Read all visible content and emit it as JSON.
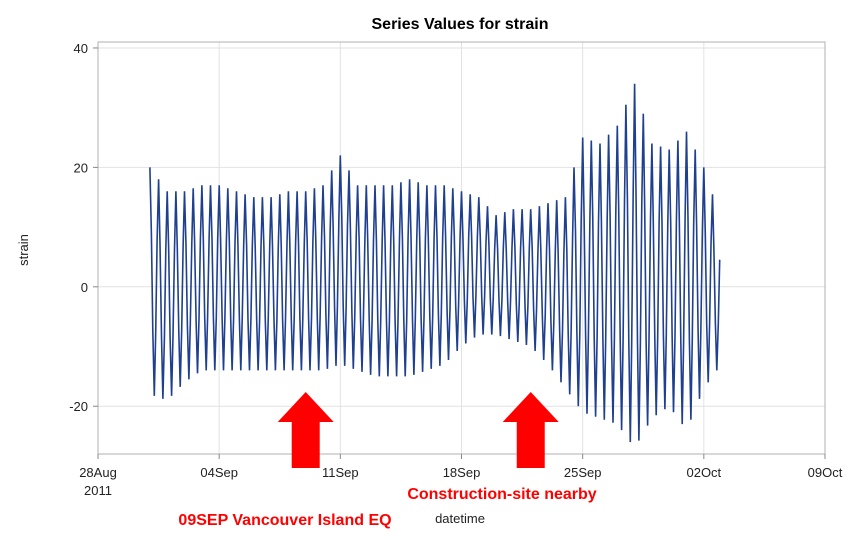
{
  "chart_data": {
    "type": "line",
    "title": "Series Values for strain",
    "xlabel": "datetime",
    "ylabel": "strain",
    "xlim": [
      "2011-08-28",
      "2011-10-09"
    ],
    "ylim": [
      -28,
      41
    ],
    "x_ticks": [
      {
        "date": "2011-08-28",
        "label": "28Aug",
        "sublabel": "2011"
      },
      {
        "date": "2011-09-04",
        "label": "04Sep",
        "sublabel": ""
      },
      {
        "date": "2011-09-11",
        "label": "11Sep",
        "sublabel": ""
      },
      {
        "date": "2011-09-18",
        "label": "18Sep",
        "sublabel": ""
      },
      {
        "date": "2011-09-25",
        "label": "25Sep",
        "sublabel": ""
      },
      {
        "date": "2011-10-02",
        "label": "02Oct",
        "sublabel": ""
      },
      {
        "date": "2011-10-09",
        "label": "09Oct",
        "sublabel": ""
      }
    ],
    "y_ticks": [
      40,
      20,
      0,
      -20
    ],
    "grid": true,
    "line_color": "#1f3f8f",
    "series": [
      {
        "start": "2011-08-31",
        "x": [
          "2011-08-31",
          "2011-09-01",
          "2011-09-02",
          "2011-09-03",
          "2011-09-04",
          "2011-09-05",
          "2011-09-06",
          "2011-09-07",
          "2011-09-08",
          "2011-09-09",
          "2011-09-10",
          "2011-09-11",
          "2011-09-12",
          "2011-09-13",
          "2011-09-14",
          "2011-09-15",
          "2011-09-16",
          "2011-09-17",
          "2011-09-18",
          "2011-09-19",
          "2011-09-20",
          "2011-09-21",
          "2011-09-22",
          "2011-09-23",
          "2011-09-24",
          "2011-09-25",
          "2011-09-26",
          "2011-09-27",
          "2011-09-28",
          "2011-09-29",
          "2011-09-30",
          "2011-10-01",
          "2011-10-02",
          "2011-10-03"
        ],
        "upper": [
          20,
          16,
          16,
          17,
          17,
          16,
          15,
          15,
          16,
          16,
          17,
          22,
          17,
          17,
          17,
          18,
          17,
          17,
          16,
          15,
          12,
          13,
          13,
          14,
          15,
          25,
          24,
          27,
          34,
          24,
          23,
          26,
          20,
          11
        ],
        "lower": [
          -18,
          -19,
          -16,
          -14,
          -14,
          -14,
          -14,
          -14,
          -14,
          -14,
          -14,
          -13,
          -14,
          -15,
          -15,
          -15,
          -14,
          -13,
          -10,
          -8,
          -8,
          -9,
          -10,
          -13,
          -17,
          -21,
          -22,
          -23,
          -27,
          -22,
          -20,
          -24,
          -17,
          -13
        ]
      }
    ],
    "annotations": [
      {
        "text": "09SEP Vancouver Island EQ",
        "date": "2011-09-09",
        "color": "#ff0000"
      },
      {
        "text": "Construction-site nearby",
        "date": "2011-09-22",
        "color": "#ff0000"
      }
    ]
  }
}
